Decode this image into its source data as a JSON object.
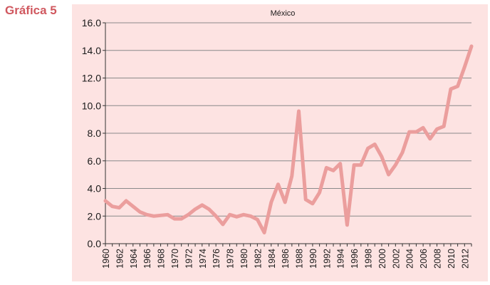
{
  "figure_label": "Gráfica 5",
  "chart_data": {
    "type": "line",
    "title": "México",
    "xlabel": "",
    "ylabel": "",
    "ylim": [
      0,
      16
    ],
    "yticks": [
      "0.0",
      "2.0",
      "4.0",
      "6.0",
      "8.0",
      "10.0",
      "12.0",
      "14.0",
      "16.0"
    ],
    "xticks": [
      "1960",
      "1962",
      "1964",
      "1966",
      "1968",
      "1970",
      "1972",
      "1974",
      "1976",
      "1978",
      "1980",
      "1982",
      "1984",
      "1986",
      "1988",
      "1990",
      "1992",
      "1994",
      "1996",
      "1998",
      "2000",
      "2002",
      "2004",
      "2006",
      "2008",
      "2010",
      "2012"
    ],
    "grid": true,
    "x": [
      1960,
      1961,
      1962,
      1963,
      1964,
      1965,
      1966,
      1967,
      1968,
      1969,
      1970,
      1971,
      1972,
      1973,
      1974,
      1975,
      1976,
      1977,
      1978,
      1979,
      1980,
      1981,
      1982,
      1983,
      1984,
      1985,
      1986,
      1987,
      1988,
      1989,
      1990,
      1991,
      1992,
      1993,
      1994,
      1995,
      1996,
      1997,
      1998,
      1999,
      2000,
      2001,
      2002,
      2003,
      2004,
      2005,
      2006,
      2007,
      2008,
      2009,
      2010,
      2011,
      2012,
      2013
    ],
    "values": [
      3.1,
      2.7,
      2.6,
      3.1,
      2.7,
      2.3,
      2.1,
      2.0,
      2.05,
      2.1,
      1.8,
      1.8,
      2.1,
      2.5,
      2.8,
      2.5,
      2.0,
      1.4,
      2.1,
      1.95,
      2.1,
      2.0,
      1.75,
      0.8,
      3.0,
      4.3,
      3.0,
      4.9,
      9.6,
      3.2,
      2.9,
      3.7,
      5.5,
      5.3,
      5.8,
      1.35,
      5.7,
      5.7,
      6.9,
      7.2,
      6.3,
      5.0,
      5.7,
      6.6,
      8.1,
      8.1,
      8.4,
      7.6,
      8.3,
      8.5,
      11.2,
      11.4,
      12.8,
      14.3
    ],
    "line_color": "#eb9e9d",
    "background_color": "#fde3e2",
    "grid_color": "#8a8a8a"
  }
}
